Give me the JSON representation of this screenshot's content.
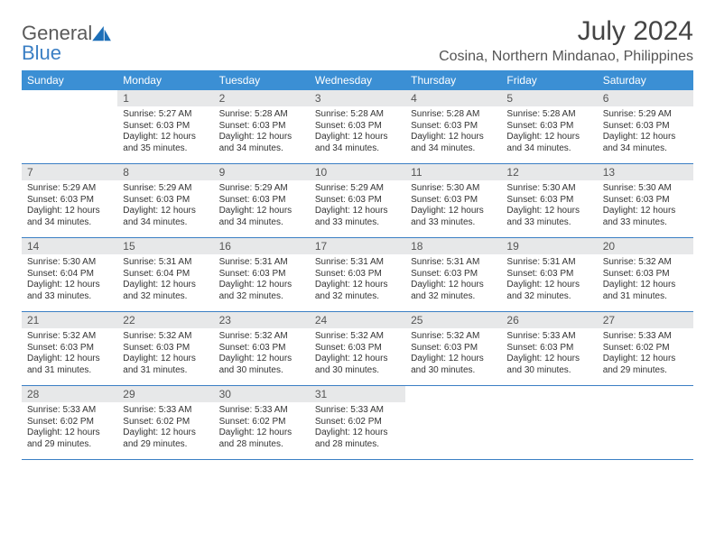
{
  "brand": {
    "part1": "General",
    "part2": "Blue"
  },
  "title": "July 2024",
  "location": "Cosina, Northern Mindanao, Philippines",
  "colors": {
    "header_bg": "#3b8fd4",
    "header_text": "#ffffff",
    "daynum_bg": "#e7e8e9",
    "rule": "#3b7fc4",
    "logo_gray": "#5a5a5a",
    "logo_blue": "#3b7fc4"
  },
  "weekdays": [
    "Sunday",
    "Monday",
    "Tuesday",
    "Wednesday",
    "Thursday",
    "Friday",
    "Saturday"
  ],
  "weeks": [
    [
      {
        "n": "",
        "sr": "",
        "ss": "",
        "dl": ""
      },
      {
        "n": "1",
        "sr": "5:27 AM",
        "ss": "6:03 PM",
        "dl": "12 hours and 35 minutes."
      },
      {
        "n": "2",
        "sr": "5:28 AM",
        "ss": "6:03 PM",
        "dl": "12 hours and 34 minutes."
      },
      {
        "n": "3",
        "sr": "5:28 AM",
        "ss": "6:03 PM",
        "dl": "12 hours and 34 minutes."
      },
      {
        "n": "4",
        "sr": "5:28 AM",
        "ss": "6:03 PM",
        "dl": "12 hours and 34 minutes."
      },
      {
        "n": "5",
        "sr": "5:28 AM",
        "ss": "6:03 PM",
        "dl": "12 hours and 34 minutes."
      },
      {
        "n": "6",
        "sr": "5:29 AM",
        "ss": "6:03 PM",
        "dl": "12 hours and 34 minutes."
      }
    ],
    [
      {
        "n": "7",
        "sr": "5:29 AM",
        "ss": "6:03 PM",
        "dl": "12 hours and 34 minutes."
      },
      {
        "n": "8",
        "sr": "5:29 AM",
        "ss": "6:03 PM",
        "dl": "12 hours and 34 minutes."
      },
      {
        "n": "9",
        "sr": "5:29 AM",
        "ss": "6:03 PM",
        "dl": "12 hours and 34 minutes."
      },
      {
        "n": "10",
        "sr": "5:29 AM",
        "ss": "6:03 PM",
        "dl": "12 hours and 33 minutes."
      },
      {
        "n": "11",
        "sr": "5:30 AM",
        "ss": "6:03 PM",
        "dl": "12 hours and 33 minutes."
      },
      {
        "n": "12",
        "sr": "5:30 AM",
        "ss": "6:03 PM",
        "dl": "12 hours and 33 minutes."
      },
      {
        "n": "13",
        "sr": "5:30 AM",
        "ss": "6:03 PM",
        "dl": "12 hours and 33 minutes."
      }
    ],
    [
      {
        "n": "14",
        "sr": "5:30 AM",
        "ss": "6:04 PM",
        "dl": "12 hours and 33 minutes."
      },
      {
        "n": "15",
        "sr": "5:31 AM",
        "ss": "6:04 PM",
        "dl": "12 hours and 32 minutes."
      },
      {
        "n": "16",
        "sr": "5:31 AM",
        "ss": "6:03 PM",
        "dl": "12 hours and 32 minutes."
      },
      {
        "n": "17",
        "sr": "5:31 AM",
        "ss": "6:03 PM",
        "dl": "12 hours and 32 minutes."
      },
      {
        "n": "18",
        "sr": "5:31 AM",
        "ss": "6:03 PM",
        "dl": "12 hours and 32 minutes."
      },
      {
        "n": "19",
        "sr": "5:31 AM",
        "ss": "6:03 PM",
        "dl": "12 hours and 32 minutes."
      },
      {
        "n": "20",
        "sr": "5:32 AM",
        "ss": "6:03 PM",
        "dl": "12 hours and 31 minutes."
      }
    ],
    [
      {
        "n": "21",
        "sr": "5:32 AM",
        "ss": "6:03 PM",
        "dl": "12 hours and 31 minutes."
      },
      {
        "n": "22",
        "sr": "5:32 AM",
        "ss": "6:03 PM",
        "dl": "12 hours and 31 minutes."
      },
      {
        "n": "23",
        "sr": "5:32 AM",
        "ss": "6:03 PM",
        "dl": "12 hours and 30 minutes."
      },
      {
        "n": "24",
        "sr": "5:32 AM",
        "ss": "6:03 PM",
        "dl": "12 hours and 30 minutes."
      },
      {
        "n": "25",
        "sr": "5:32 AM",
        "ss": "6:03 PM",
        "dl": "12 hours and 30 minutes."
      },
      {
        "n": "26",
        "sr": "5:33 AM",
        "ss": "6:03 PM",
        "dl": "12 hours and 30 minutes."
      },
      {
        "n": "27",
        "sr": "5:33 AM",
        "ss": "6:02 PM",
        "dl": "12 hours and 29 minutes."
      }
    ],
    [
      {
        "n": "28",
        "sr": "5:33 AM",
        "ss": "6:02 PM",
        "dl": "12 hours and 29 minutes."
      },
      {
        "n": "29",
        "sr": "5:33 AM",
        "ss": "6:02 PM",
        "dl": "12 hours and 29 minutes."
      },
      {
        "n": "30",
        "sr": "5:33 AM",
        "ss": "6:02 PM",
        "dl": "12 hours and 28 minutes."
      },
      {
        "n": "31",
        "sr": "5:33 AM",
        "ss": "6:02 PM",
        "dl": "12 hours and 28 minutes."
      },
      {
        "n": "",
        "sr": "",
        "ss": "",
        "dl": ""
      },
      {
        "n": "",
        "sr": "",
        "ss": "",
        "dl": ""
      },
      {
        "n": "",
        "sr": "",
        "ss": "",
        "dl": ""
      }
    ]
  ],
  "labels": {
    "sunrise": "Sunrise: ",
    "sunset": "Sunset: ",
    "daylight": "Daylight: "
  }
}
